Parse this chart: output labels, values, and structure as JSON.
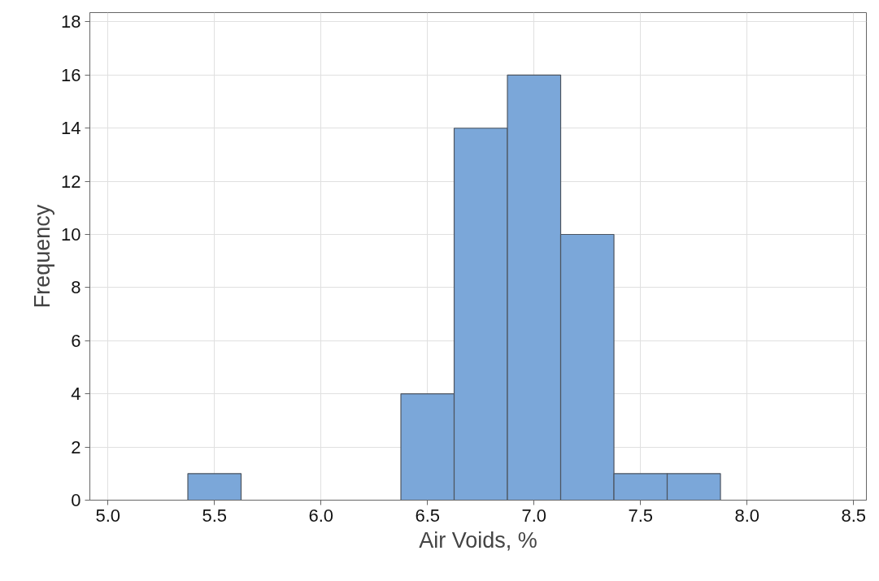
{
  "chart_data": {
    "type": "histogram",
    "xlabel": "Air Voids, %",
    "ylabel": "Frequency",
    "bins": [
      5.375,
      5.625,
      5.875,
      6.125,
      6.375,
      6.625,
      6.875,
      7.125,
      7.375,
      7.625,
      7.875
    ],
    "values": [
      1,
      0,
      0,
      0,
      4,
      14,
      16,
      10,
      1,
      1
    ],
    "color": "#7ba7d9",
    "xlim": [
      4.915,
      8.56
    ],
    "xticks": [
      {
        "value": 5.0,
        "label": "5.0"
      },
      {
        "value": 5.5,
        "label": "5.5"
      },
      {
        "value": 6.0,
        "label": "6.0"
      },
      {
        "value": 6.5,
        "label": "6.5"
      },
      {
        "value": 7.0,
        "label": "7.0"
      },
      {
        "value": 7.5,
        "label": "7.5"
      },
      {
        "value": 8.0,
        "label": "8.0"
      },
      {
        "value": 8.5,
        "label": "8.5"
      }
    ],
    "ylim": [
      0,
      18.35
    ],
    "yticks": [
      0,
      2,
      4,
      6,
      8,
      10,
      12,
      14,
      16,
      18
    ],
    "grid": true
  }
}
